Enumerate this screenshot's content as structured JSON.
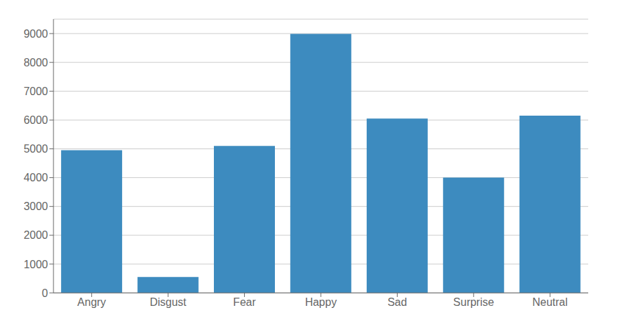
{
  "chart_data": {
    "type": "bar",
    "categories": [
      "Angry",
      "Disgust",
      "Fear",
      "Happy",
      "Sad",
      "Surprise",
      "Neutral"
    ],
    "values": [
      4950,
      550,
      5100,
      8990,
      6050,
      4000,
      6150
    ],
    "color": "#3d8bbf",
    "ylim": [
      0,
      9500
    ],
    "yticks": [
      0,
      1000,
      2000,
      3000,
      4000,
      5000,
      6000,
      7000,
      8000,
      9000
    ],
    "grid": true
  }
}
